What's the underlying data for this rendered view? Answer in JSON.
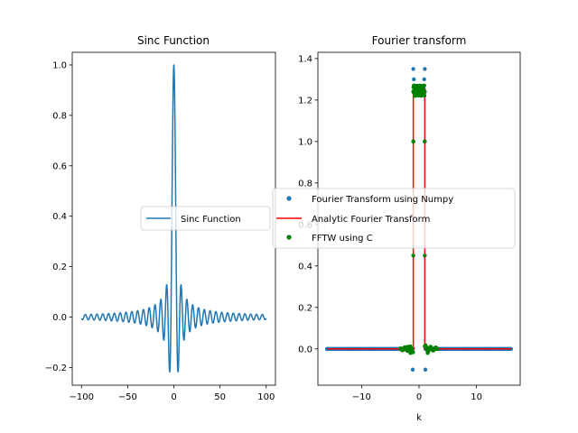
{
  "chart_data": [
    {
      "type": "line",
      "title": "Sinc Function",
      "xlabel": "",
      "ylabel": "",
      "xlim": [
        -110,
        110
      ],
      "ylim": [
        -0.27,
        1.05
      ],
      "xticks": [
        -100,
        -50,
        0,
        50,
        100
      ],
      "xtick_labels": [
        "−100",
        "−50",
        "0",
        "50",
        "100"
      ],
      "yticks": [
        -0.2,
        0.0,
        0.2,
        0.4,
        0.6,
        0.8,
        1.0
      ],
      "ytick_labels": [
        "−0.2",
        "0.0",
        "0.2",
        "0.4",
        "0.6",
        "0.8",
        "1.0"
      ],
      "series": [
        {
          "name": "Sinc Function",
          "color": "#1f77b4",
          "function": "sin(x)/x",
          "x_range": [
            -100,
            100
          ],
          "x": [
            -100,
            -75,
            -50,
            -30,
            -20,
            -15,
            -10,
            -7.725,
            -4.493,
            0,
            4.493,
            7.725,
            10,
            15,
            20,
            30,
            50,
            75,
            100
          ],
          "y": [
            -0.005,
            0.005,
            -0.005,
            -0.033,
            0.046,
            0.043,
            -0.054,
            0.128,
            -0.217,
            1.0,
            -0.217,
            0.128,
            -0.054,
            0.043,
            0.046,
            -0.033,
            -0.005,
            0.005,
            -0.005
          ]
        }
      ],
      "legend": {
        "position": "center-right",
        "entries": [
          "Sinc Function"
        ]
      },
      "grid": false
    },
    {
      "type": "scatter",
      "title": "Fourier transform",
      "xlabel": "k",
      "ylabel": "",
      "xlim": [
        -17.6,
        17.6
      ],
      "ylim": [
        -0.175,
        1.43
      ],
      "xticks": [
        -10,
        0,
        10
      ],
      "xtick_labels": [
        "−10",
        "0",
        "10"
      ],
      "yticks": [
        0.0,
        0.2,
        0.4,
        0.6,
        0.8,
        1.0,
        1.2,
        1.4
      ],
      "ytick_labels": [
        "0.0",
        "0.2",
        "0.4",
        "0.6",
        "0.8",
        "1.0",
        "1.2",
        "1.4"
      ],
      "series": [
        {
          "name": "Fourier Transform using Numpy",
          "style": "scatter",
          "color": "#1f77b4",
          "x": [
            -16,
            -12,
            -8,
            -4,
            -2,
            -1.1,
            -1.0,
            -0.9,
            -0.5,
            0,
            0.5,
            0.9,
            1.0,
            1.1,
            2,
            4,
            8,
            12,
            16
          ],
          "y": [
            0.0,
            0.0,
            0.0,
            0.0,
            0.0,
            -0.1,
            1.35,
            1.3,
            1.25,
            1.25,
            1.25,
            1.3,
            1.35,
            -0.1,
            0.0,
            0.0,
            0.0,
            0.0,
            0.0
          ]
        },
        {
          "name": "Analytic Fourier Transform",
          "style": "line",
          "color": "#ff0000",
          "x": [
            -16,
            -1,
            -1,
            1,
            1,
            16
          ],
          "y": [
            0,
            0,
            1.2533,
            1.2533,
            0,
            0
          ]
        },
        {
          "name": "FFTW using C",
          "style": "scatter",
          "color": "#008000",
          "x": [
            -3,
            -2,
            -1.5,
            -1.0,
            -1.0,
            -0.9,
            -0.5,
            0,
            0.5,
            0.9,
            1.0,
            1.0,
            1.5,
            2,
            3
          ],
          "y": [
            0.0,
            0.01,
            -0.02,
            1.0,
            1.24,
            1.27,
            1.23,
            1.25,
            1.23,
            1.27,
            1.24,
            1.0,
            -0.02,
            0.01,
            0.0
          ]
        }
      ],
      "legend": {
        "position": "center-left",
        "entries": [
          "Fourier Transform using Numpy",
          "Analytic Fourier Transform",
          "FFTW using C"
        ]
      },
      "grid": false
    }
  ]
}
